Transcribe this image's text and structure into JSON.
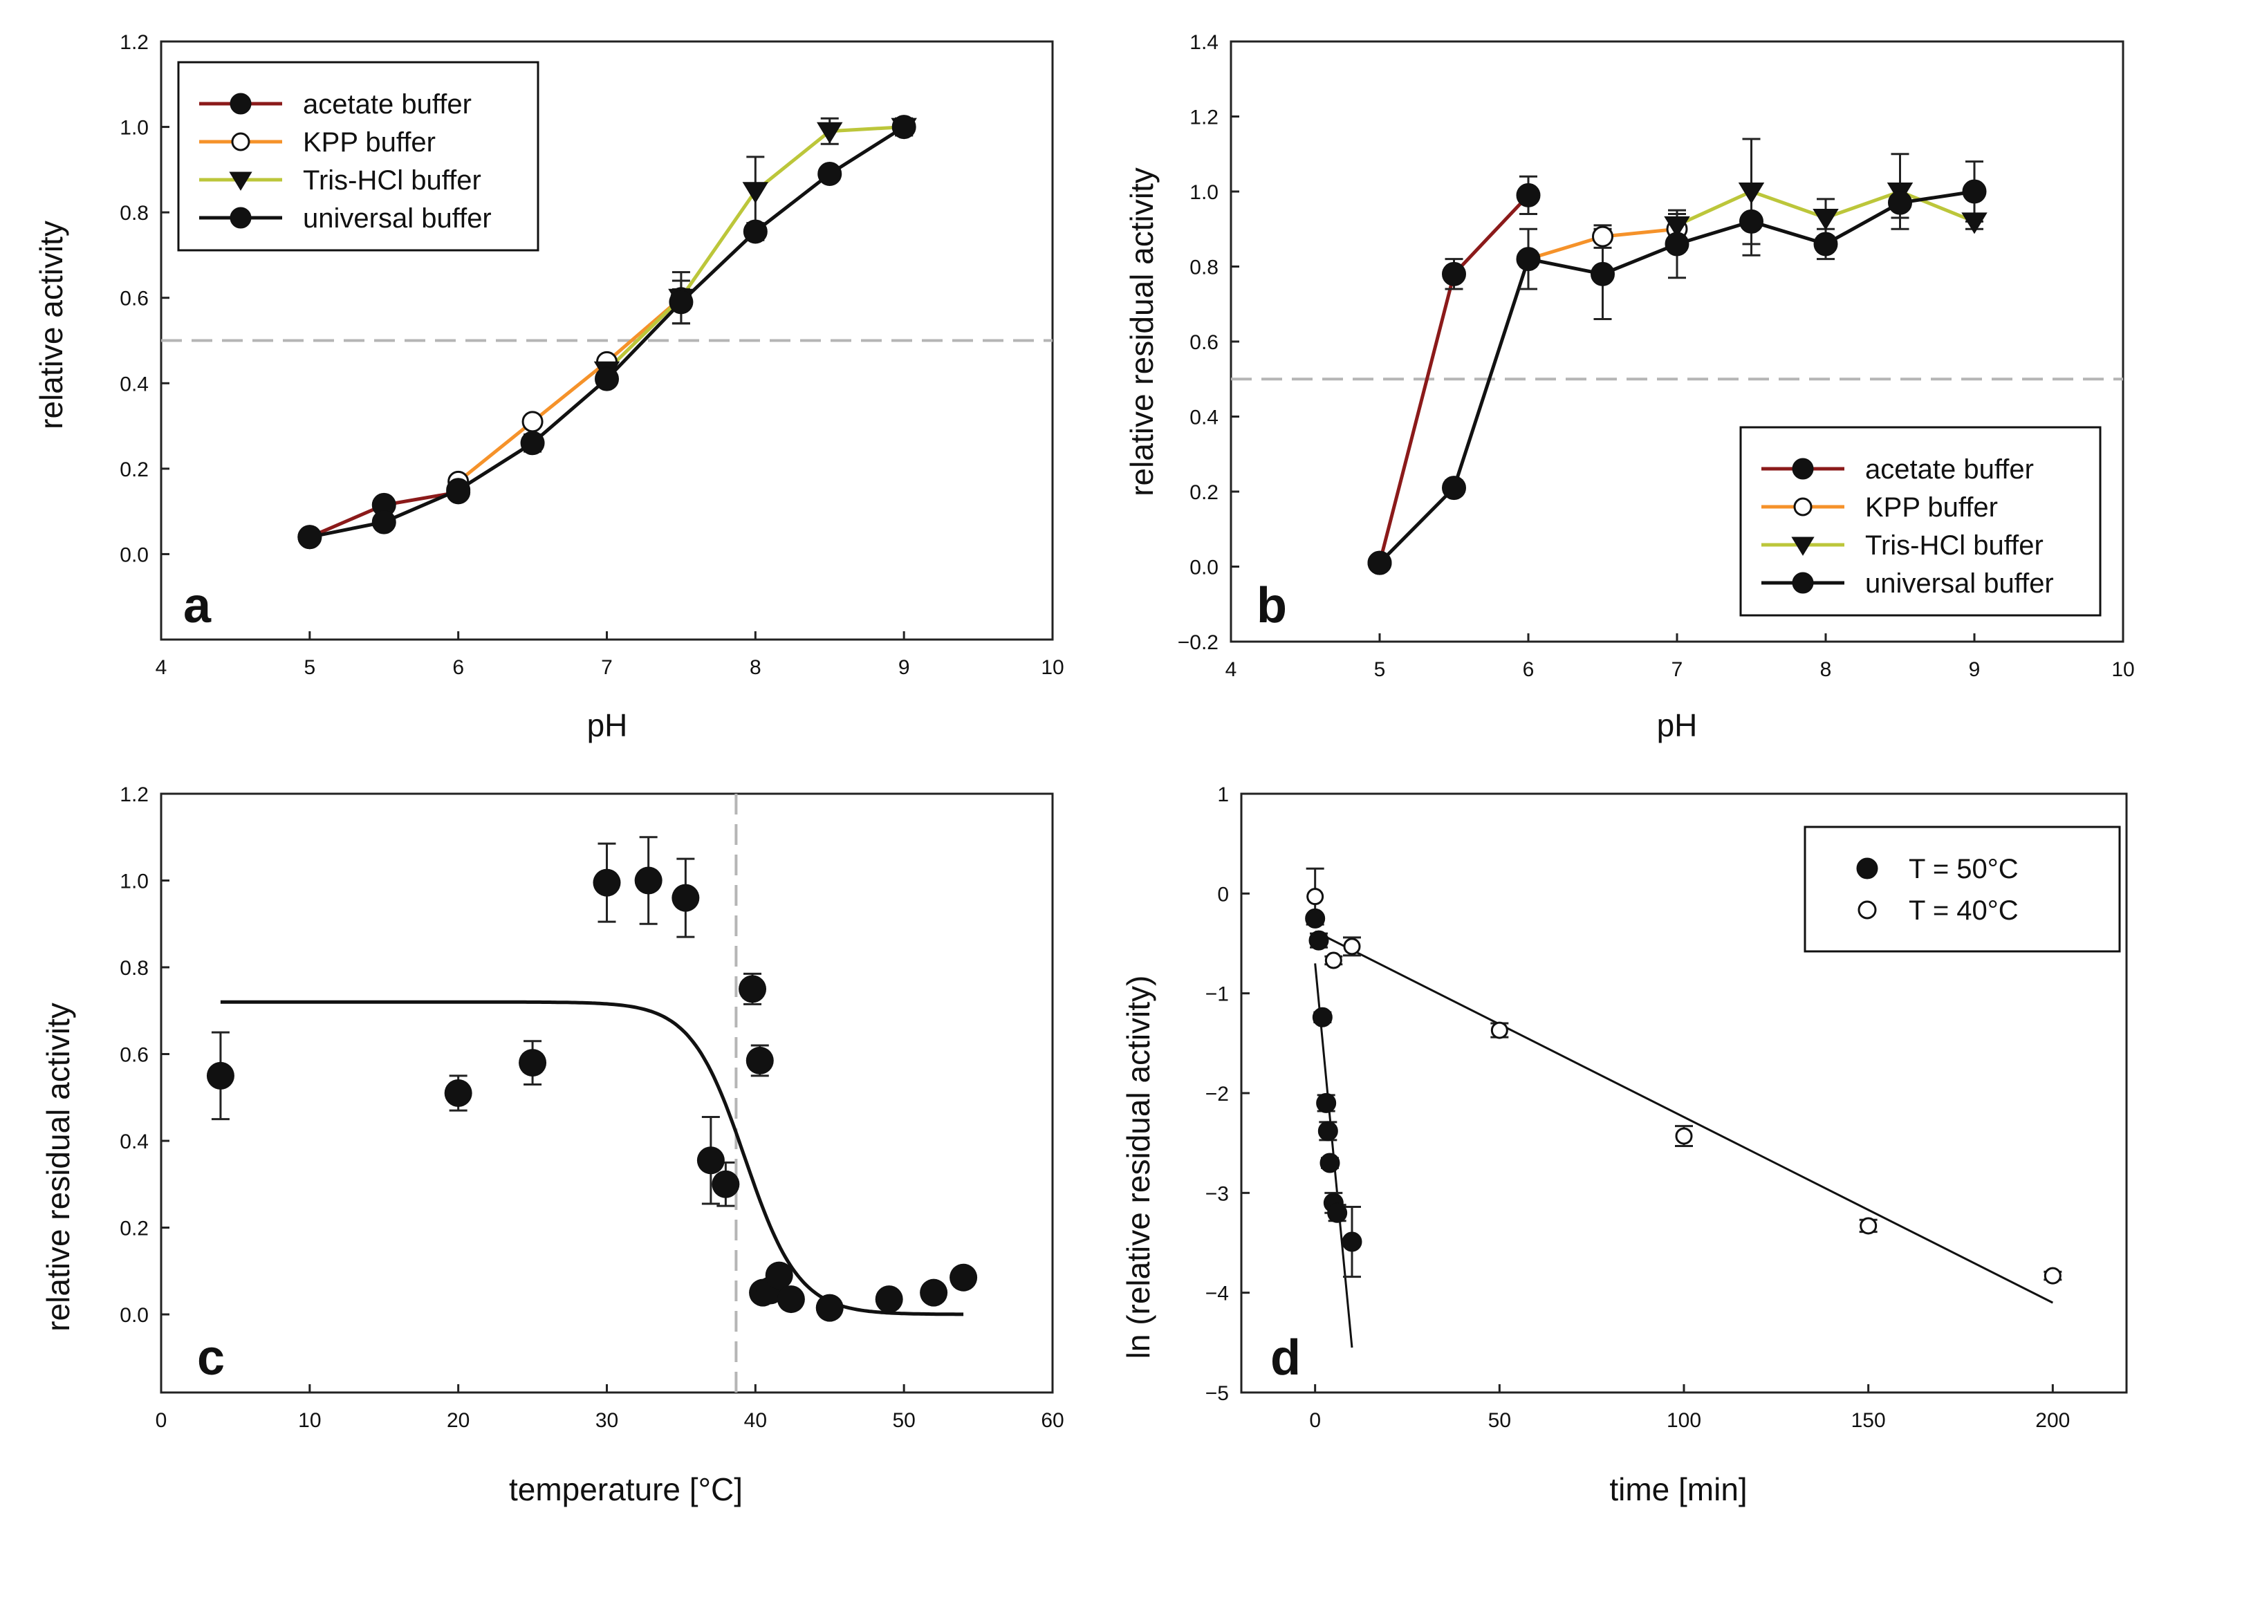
{
  "chart_data": [
    {
      "panel": "a",
      "type": "line",
      "xlabel": "pH",
      "ylabel": "relative activity",
      "xlim": [
        4,
        10
      ],
      "ylim": [
        -0.2,
        1.2
      ],
      "xticks": [
        4,
        5,
        6,
        7,
        8,
        9,
        10
      ],
      "yticks": [
        0.0,
        0.2,
        0.4,
        0.6,
        0.8,
        1.0,
        1.2
      ],
      "ytick_labels": [
        "0.0",
        "0.2",
        "0.4",
        "0.6",
        "0.8",
        "1.0",
        "1.2"
      ],
      "reference_line": {
        "orientation": "horizontal",
        "value": 0.5
      },
      "legend": "top-left",
      "series": [
        {
          "name": "acetate buffer",
          "color": "#8b1a1a",
          "marker": "filled-circle",
          "x": [
            5,
            5.5,
            6
          ],
          "y": [
            0.04,
            0.115,
            0.145
          ],
          "err": [
            0.01,
            0.01,
            0.01
          ]
        },
        {
          "name": "KPP buffer",
          "color": "#f5922a",
          "marker": "open-circle",
          "x": [
            6,
            6.5,
            7,
            7.5
          ],
          "y": [
            0.17,
            0.31,
            0.45,
            0.6
          ],
          "err": [
            0.01,
            0.01,
            0.01,
            0.02
          ]
        },
        {
          "name": "Tris-HCl buffer",
          "color": "#bcc63a",
          "marker": "filled-triangle-down",
          "x": [
            7,
            7.5,
            8,
            8.5,
            9
          ],
          "y": [
            0.43,
            0.6,
            0.85,
            0.99,
            1.0
          ],
          "err": [
            0.01,
            0.06,
            0.08,
            0.03,
            0.02
          ]
        },
        {
          "name": "universal buffer",
          "color": "#111111",
          "marker": "filled-circle",
          "x": [
            5,
            5.5,
            6,
            6.5,
            7,
            7.5,
            8,
            8.5,
            9
          ],
          "y": [
            0.04,
            0.075,
            0.15,
            0.26,
            0.41,
            0.59,
            0.755,
            0.89,
            1.0
          ],
          "err": [
            0.01,
            0.01,
            0.01,
            0.02,
            0.01,
            0.05,
            0.02,
            0.01,
            0.02
          ]
        }
      ],
      "annotation": "a"
    },
    {
      "panel": "b",
      "type": "line",
      "xlabel": "pH",
      "ylabel": "relative residual activity",
      "xlim": [
        4,
        10
      ],
      "ylim": [
        -0.2,
        1.4
      ],
      "xticks": [
        4,
        5,
        6,
        7,
        8,
        9,
        10
      ],
      "yticks": [
        -0.2,
        0.0,
        0.2,
        0.4,
        0.6,
        0.8,
        1.0,
        1.2,
        1.4
      ],
      "ytick_labels": [
        "−0.2",
        "0.0",
        "0.2",
        "0.4",
        "0.6",
        "0.8",
        "1.0",
        "1.2",
        "1.4"
      ],
      "reference_line": {
        "orientation": "horizontal",
        "value": 0.5
      },
      "legend": "bottom-right",
      "series": [
        {
          "name": "acetate buffer",
          "color": "#8b1a1a",
          "marker": "filled-circle",
          "x": [
            5,
            5.5,
            6
          ],
          "y": [
            0.01,
            0.78,
            0.99
          ],
          "err": [
            0.01,
            0.04,
            0.05
          ]
        },
        {
          "name": "KPP buffer",
          "color": "#f5922a",
          "marker": "open-circle",
          "x": [
            6,
            6.5,
            7
          ],
          "y": [
            0.82,
            0.88,
            0.9
          ],
          "err": [
            0.02,
            0.03,
            0.03
          ]
        },
        {
          "name": "Tris-HCl buffer",
          "color": "#bcc63a",
          "marker": "filled-triangle-down",
          "x": [
            7,
            7.5,
            8,
            8.5,
            9
          ],
          "y": [
            0.91,
            1.0,
            0.93,
            1.0,
            0.92
          ],
          "err": [
            0.03,
            0.14,
            0.05,
            0.1,
            0.02
          ]
        },
        {
          "name": "universal buffer",
          "color": "#111111",
          "marker": "filled-circle",
          "x": [
            5,
            5.5,
            6,
            6.5,
            7,
            7.5,
            8,
            8.5,
            9
          ],
          "y": [
            0.01,
            0.21,
            0.82,
            0.78,
            0.86,
            0.92,
            0.86,
            0.97,
            1.0
          ],
          "err": [
            0.01,
            0.02,
            0.08,
            0.12,
            0.09,
            0.09,
            0.04,
            0.04,
            0.08
          ]
        }
      ],
      "annotation": "b"
    },
    {
      "panel": "c",
      "type": "scatter",
      "xlabel": "temperature [°C]",
      "ylabel": "relative residual activity",
      "xlim": [
        0,
        60
      ],
      "ylim": [
        -0.18,
        1.2
      ],
      "xticks": [
        0,
        10,
        20,
        30,
        40,
        50,
        60
      ],
      "yticks": [
        0.0,
        0.2,
        0.4,
        0.6,
        0.8,
        1.0,
        1.2
      ],
      "ytick_labels": [
        "0.0",
        "0.2",
        "0.4",
        "0.6",
        "0.8",
        "1.0",
        "1.2"
      ],
      "reference_line": {
        "orientation": "vertical",
        "value": 38.7
      },
      "points": {
        "x": [
          4,
          20,
          25,
          30,
          32.8,
          35.3,
          37,
          38,
          39.8,
          40.3,
          40.5,
          41,
          41.6,
          42.4,
          45,
          49,
          52,
          54
        ],
        "y": [
          0.55,
          0.51,
          0.58,
          0.995,
          1.0,
          0.96,
          0.355,
          0.3,
          0.75,
          0.585,
          0.05,
          0.055,
          0.09,
          0.035,
          0.015,
          0.035,
          0.05,
          0.085
        ],
        "err": [
          0.1,
          0.04,
          0.05,
          0.09,
          0.1,
          0.09,
          0.1,
          0.05,
          0.035,
          0.035,
          0.01,
          0.01,
          0.01,
          0.01,
          0.01,
          0.01,
          0.01,
          0.01
        ]
      },
      "fit": {
        "type": "sigmoid",
        "top": 0.72,
        "bottom": 0.0,
        "midpoint": 39.3,
        "slope": 0.55,
        "x_range": [
          4,
          54
        ]
      },
      "annotation": "c"
    },
    {
      "panel": "d",
      "type": "scatter",
      "xlabel": "time [min]",
      "ylabel": "ln (relative residual activity)",
      "xlim": [
        -20,
        220
      ],
      "ylim": [
        -5,
        1
      ],
      "xticks": [
        0,
        50,
        100,
        150,
        200
      ],
      "yticks": [
        -5,
        -4,
        -3,
        -2,
        -1,
        0,
        1
      ],
      "ytick_labels": [
        "−5",
        "−4",
        "−3",
        "−2",
        "−1",
        "0",
        "1"
      ],
      "legend": "top-right",
      "series": [
        {
          "name": "T = 50°C",
          "marker": "filled-circle",
          "x": [
            0,
            1,
            2,
            3,
            3.5,
            4,
            5,
            6,
            10
          ],
          "y": [
            -0.25,
            -0.47,
            -1.24,
            -2.1,
            -2.38,
            -2.7,
            -3.1,
            -3.2,
            -3.49
          ],
          "err": [
            0.03,
            0.07,
            0.05,
            0.08,
            0.09,
            0.05,
            0.1,
            0.08,
            0.35
          ],
          "fit": {
            "x": [
              0,
              10
            ],
            "y": [
              -0.7,
              -4.55
            ]
          }
        },
        {
          "name": "T = 40°C",
          "marker": "open-circle",
          "x": [
            0,
            5,
            10,
            50,
            100,
            150,
            200
          ],
          "y": [
            -0.03,
            -0.67,
            -0.53,
            -1.37,
            -2.43,
            -3.33,
            -3.83
          ],
          "err": [
            0.28,
            0.04,
            0.09,
            0.07,
            0.1,
            0.06,
            0.04
          ],
          "fit": {
            "x": [
              0,
              200
            ],
            "y": [
              -0.38,
              -4.1
            ]
          }
        }
      ],
      "annotation": "d"
    }
  ]
}
